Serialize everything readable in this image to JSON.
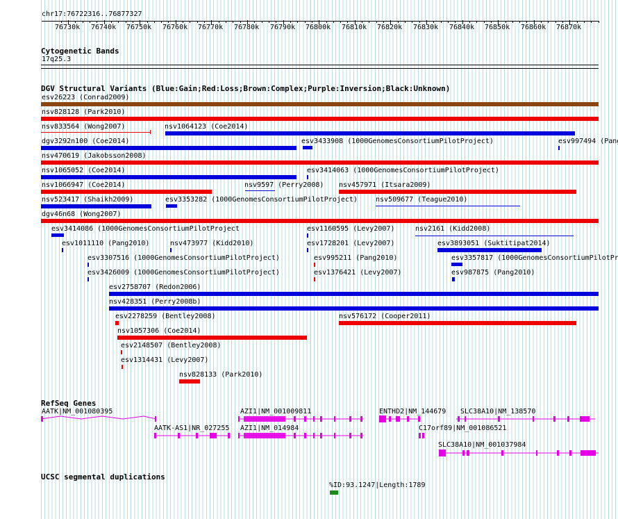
{
  "ruler": {
    "range_label": "chr17:76722316..76877327",
    "ticks": [
      "76730k",
      "76740k",
      "76750k",
      "76760k",
      "76770k",
      "76780k",
      "76790k",
      "76800k",
      "76810k",
      "76820k",
      "76830k",
      "76840k",
      "76850k",
      "76860k",
      "76870k"
    ]
  },
  "tracks": {
    "cyto": {
      "title": "Cytogenetic Bands",
      "band": "17q25.3"
    },
    "dgv": {
      "title": "DGV Structural Variants (Blue:Gain;Red:Loss;Brown:Complex;Purple:Inversion;Black:Unknown)",
      "colors": {
        "gain": "#0000dd",
        "loss": "#ee0000",
        "complex": "#8b4513",
        "inversion": "#800080",
        "unknown": "#000000"
      },
      "labels": [
        "esv26223 (Conrad2009)",
        "nsv828128 (Park2010)",
        "nsv833564 (Wong2007)",
        "nsv1064123 (Coe2014)",
        "dgv3292n100 (Coe2014)",
        "esv3433908 (1000GenomesConsortiumPilotProject)",
        "esv997494 (Pang",
        "nsv470619 (Jakobsson2008)",
        "nsv1065052 (Coe2014)",
        "esv3414063 (1000GenomesConsortiumPilotProject)",
        "nsv1066947 (Coe2014)",
        "nsv9597 (Perry2008)",
        "nsv457971 (Itsara2009)",
        "nsv523417 (Shaikh2009)",
        "esv3353282 (1000GenomesConsortiumPilotProject)",
        "nsv509677 (Teague2010)",
        "dgv46n68 (Wong2007)",
        "esv3414086 (1000GenomesConsortiumPilotProject",
        "esv1160595 (Levy2007)",
        "nsv2161 (Kidd2008)",
        "esv1011110 (Pang2010)",
        "nsv473977 (Kidd2010)",
        "esv1728201 (Levy2007)",
        "esv3893051 (Suktitipat2014)",
        "esv3307516 (1000GenomesConsortiumPilotProject)",
        "esv995211 (Pang2010)",
        "esv3357817 (1000GenomesConsortiumPilotProje",
        "esv3426009 (1000GenomesConsortiumPilotProject)",
        "esv1376421 (Levy2007)",
        "esv987875 (Pang2010)",
        "esv2758707 (Redon2006)",
        "nsv428351 (Perry2008b)",
        "esv2278259 (Bentley2008)",
        "nsv576172 (Cooper2011)",
        "nsv1057306 (Coe2014)",
        "esv2148507 (Bentley2008)",
        "esv1314431 (Levy2007)",
        "nsv828133 (Park2010)"
      ]
    },
    "refseq": {
      "title": "RefSeq Genes",
      "color": "#e600e6",
      "genes": [
        "AATK|NM_001080395",
        "AZI1|NM_001009811",
        "ENTHD2|NM_144679",
        "SLC38A10|NM_138570",
        "AATK-AS1|NR_027255",
        "AZI1|NM_014984",
        "C17orf89|NM_001086521",
        "SLC38A10|NM_001037984"
      ]
    },
    "segdup": {
      "title": "UCSC segmental duplications",
      "label": "%ID:93.1247|Length:1789",
      "color": "#1a8a1a"
    }
  }
}
